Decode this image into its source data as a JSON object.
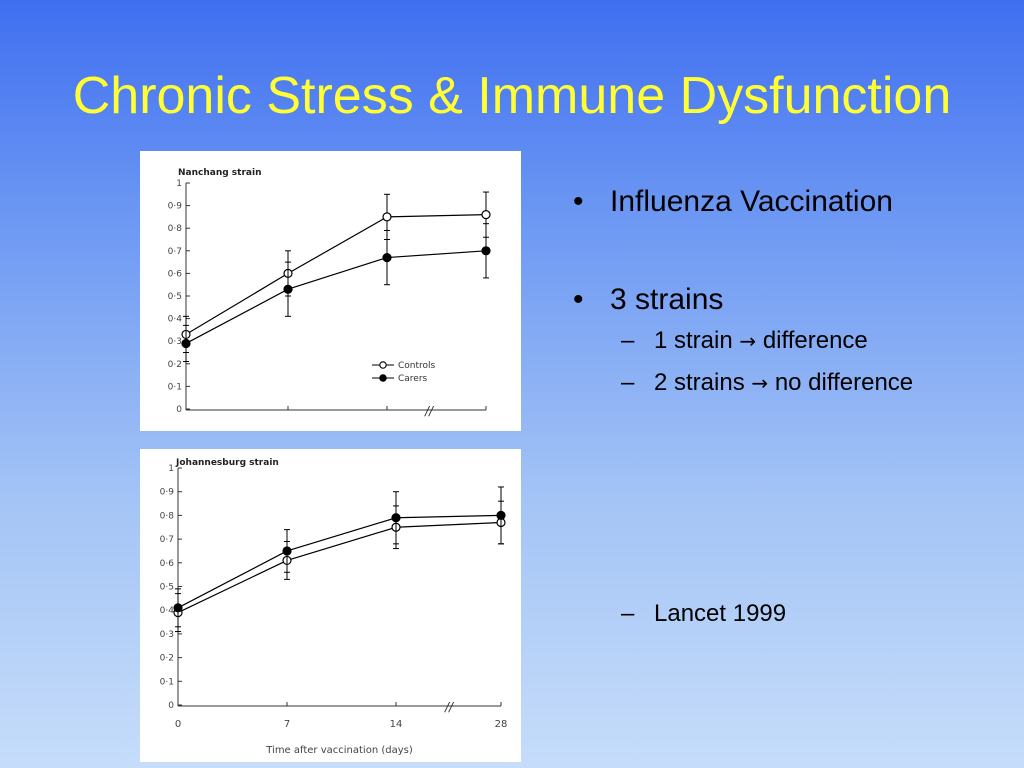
{
  "slide": {
    "title": "Chronic Stress & Immune Dysfunction",
    "bullets": [
      {
        "text": "Influenza Vaccination",
        "subs": []
      },
      {
        "text": "3 strains",
        "subs": [
          {
            "before": "1 strain",
            "arrow": "→",
            "after": "difference"
          },
          {
            "before": "2 strains",
            "arrow": "→",
            "after": "no difference"
          }
        ]
      },
      {
        "text": "",
        "subs": [
          {
            "before": "Lancet 1999",
            "arrow": "",
            "after": ""
          }
        ]
      }
    ]
  },
  "chart_data": [
    {
      "type": "line",
      "title": "Nanchang strain",
      "x": [
        0,
        7,
        14,
        28
      ],
      "xticklabels": [],
      "xlabel": "",
      "ylabel": "",
      "ylim": [
        0,
        1
      ],
      "yticks": [
        "0",
        "0·1",
        "0·2",
        "0·3",
        "0·4",
        "0·5",
        "0·6",
        "0·7",
        "0·8",
        "0·9",
        "1"
      ],
      "axis_break": "//",
      "series": [
        {
          "name": "Controls",
          "marker": "open-circle",
          "values": [
            0.33,
            0.6,
            0.85,
            0.86
          ],
          "err": [
            0.08,
            0.1,
            0.1,
            0.1
          ]
        },
        {
          "name": "Carers",
          "marker": "filled-circle",
          "values": [
            0.29,
            0.53,
            0.67,
            0.7
          ],
          "err": [
            0.08,
            0.12,
            0.12,
            0.12
          ]
        }
      ],
      "legend": "bottom-right",
      "grid": false
    },
    {
      "type": "line",
      "title": "Johannesburg strain",
      "x": [
        0,
        7,
        14,
        28
      ],
      "xticklabels": [
        "0",
        "7",
        "14",
        "28"
      ],
      "xlabel": "Time after vaccination (days)",
      "ylabel": "",
      "ylim": [
        0,
        1
      ],
      "yticks": [
        "0",
        "0·1",
        "0·2",
        "0·3",
        "0·4",
        "0·5",
        "0·6",
        "0·7",
        "0·8",
        "0·9",
        "1"
      ],
      "axis_break": "//",
      "series": [
        {
          "name": "Controls",
          "marker": "open-circle",
          "values": [
            0.39,
            0.61,
            0.75,
            0.77
          ],
          "err": [
            0.08,
            0.08,
            0.09,
            0.09
          ]
        },
        {
          "name": "Carers",
          "marker": "filled-circle",
          "values": [
            0.41,
            0.65,
            0.79,
            0.8
          ],
          "err": [
            0.08,
            0.09,
            0.11,
            0.12
          ]
        }
      ],
      "legend": "none",
      "grid": false
    }
  ]
}
